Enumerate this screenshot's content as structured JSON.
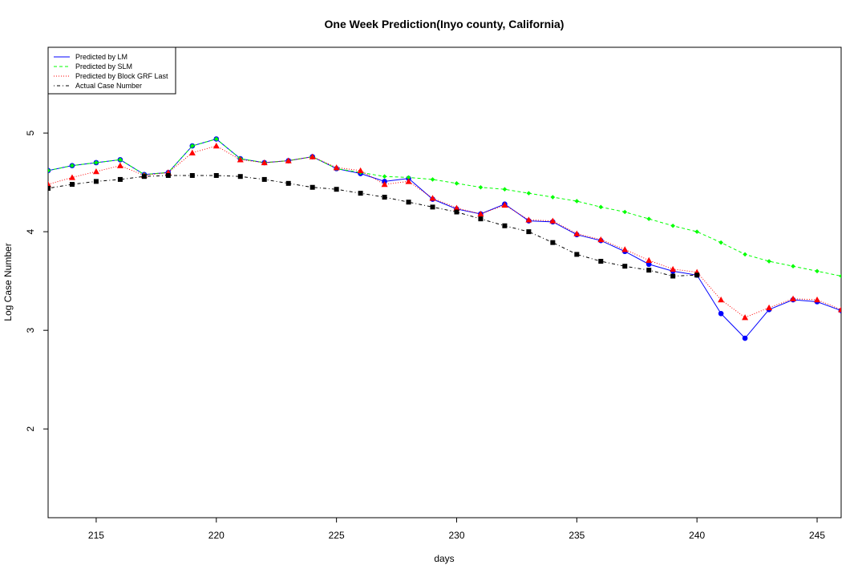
{
  "chart_data": {
    "type": "line",
    "title": "One Week Prediction(Inyo county, California)",
    "xlabel": "days",
    "ylabel": "Log Case Number",
    "xlim": [
      213,
      246
    ],
    "ylim": [
      1.1,
      5.87
    ],
    "x_ticks": [
      215,
      220,
      225,
      230,
      235,
      240,
      245
    ],
    "y_ticks": [
      2,
      3,
      4,
      5
    ],
    "grid": false,
    "legend_position": "top-left",
    "series": [
      {
        "name": "Predicted by LM",
        "color": "#0000ff",
        "line_style": "solid",
        "marker": "circle",
        "x": [
          213,
          214,
          215,
          216,
          217,
          218,
          219,
          220,
          221,
          222,
          223,
          224,
          225,
          226,
          227,
          228,
          229,
          230,
          231,
          232,
          233,
          234,
          235,
          236,
          237,
          238,
          239,
          240,
          241,
          242,
          243,
          244,
          245,
          246
        ],
        "y": [
          4.62,
          4.67,
          4.7,
          4.73,
          4.58,
          4.6,
          4.87,
          4.94,
          4.74,
          4.7,
          4.72,
          4.76,
          4.64,
          4.59,
          4.51,
          4.54,
          4.33,
          4.23,
          4.18,
          4.28,
          4.11,
          4.1,
          3.97,
          3.91,
          3.8,
          3.67,
          3.6,
          3.56,
          3.17,
          2.92,
          3.21,
          3.31,
          3.29,
          3.2
        ]
      },
      {
        "name": "Predicted by SLM",
        "color": "#00ff00",
        "line_style": "dashed",
        "marker": "diamond",
        "x": [
          213,
          214,
          215,
          216,
          217,
          218,
          219,
          220,
          221,
          222,
          223,
          224,
          225,
          226,
          227,
          228,
          229,
          230,
          231,
          232,
          233,
          234,
          235,
          236,
          237,
          238,
          239,
          240,
          241,
          242,
          243,
          244,
          245,
          246
        ],
        "y": [
          4.62,
          4.67,
          4.7,
          4.73,
          4.58,
          4.6,
          4.87,
          4.94,
          4.74,
          4.7,
          4.72,
          4.76,
          4.64,
          4.6,
          4.56,
          4.55,
          4.53,
          4.49,
          4.45,
          4.43,
          4.39,
          4.35,
          4.31,
          4.25,
          4.2,
          4.13,
          4.06,
          4.0,
          3.89,
          3.77,
          3.7,
          3.65,
          3.6,
          3.55
        ]
      },
      {
        "name": "Predicted by Block GRF Last",
        "color": "#ff0000",
        "line_style": "dotted",
        "marker": "triangle",
        "x": [
          213,
          214,
          215,
          216,
          217,
          218,
          219,
          220,
          221,
          222,
          223,
          224,
          225,
          226,
          227,
          228,
          229,
          230,
          231,
          232,
          233,
          234,
          235,
          236,
          237,
          238,
          239,
          240,
          241,
          242,
          243,
          244,
          245,
          246
        ],
        "y": [
          4.48,
          4.55,
          4.61,
          4.67,
          4.57,
          4.6,
          4.8,
          4.87,
          4.73,
          4.7,
          4.72,
          4.76,
          4.65,
          4.62,
          4.48,
          4.51,
          4.34,
          4.24,
          4.18,
          4.27,
          4.12,
          4.11,
          3.98,
          3.92,
          3.82,
          3.71,
          3.62,
          3.59,
          3.31,
          3.13,
          3.23,
          3.32,
          3.31,
          3.21
        ]
      },
      {
        "name": "Actual Case Number",
        "color": "#000000",
        "line_style": "dotdash",
        "marker": "square",
        "x": [
          213,
          214,
          215,
          216,
          217,
          218,
          219,
          220,
          221,
          222,
          223,
          224,
          225,
          226,
          227,
          228,
          229,
          230,
          231,
          232,
          233,
          234,
          235,
          236,
          237,
          238,
          239,
          240
        ],
        "y": [
          4.44,
          4.48,
          4.51,
          4.53,
          4.56,
          4.57,
          4.57,
          4.57,
          4.56,
          4.53,
          4.49,
          4.45,
          4.43,
          4.39,
          4.35,
          4.3,
          4.25,
          4.2,
          4.13,
          4.06,
          4.0,
          3.89,
          3.77,
          3.7,
          3.65,
          3.61,
          3.55,
          3.56
        ]
      }
    ]
  }
}
